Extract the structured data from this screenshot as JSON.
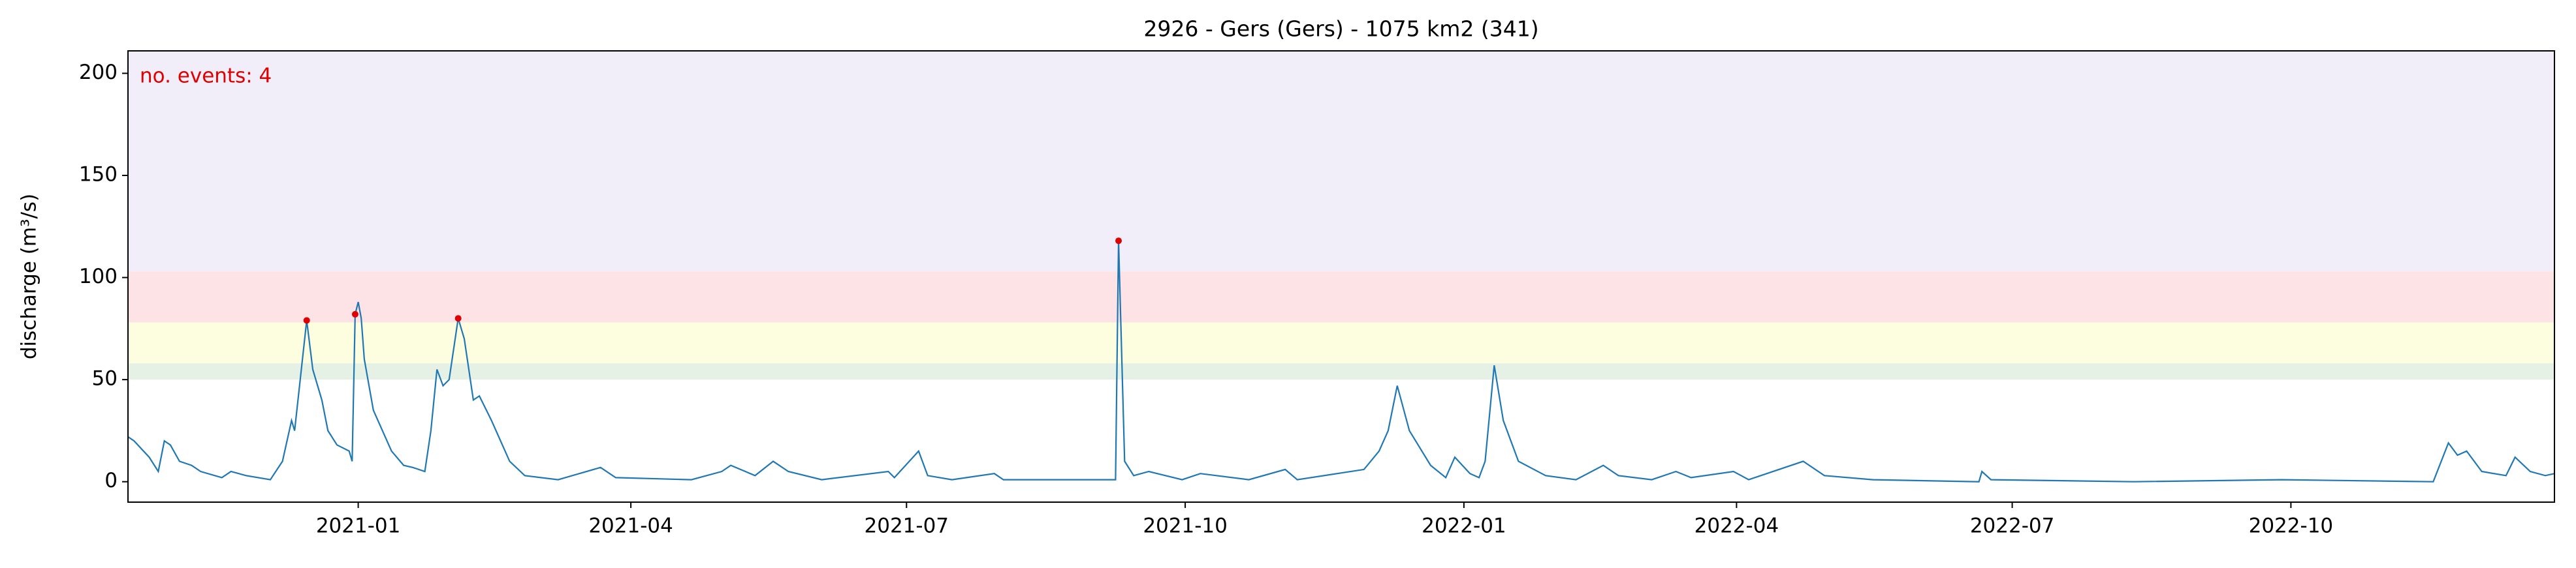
{
  "chart_data": {
    "type": "line",
    "title": "2926 - Gers (Gers) - 1075 km2 (341)",
    "y_label": "discharge (m³/s)",
    "annotation": "no. events: 4",
    "annotation_color": "#e00000",
    "xlim": [
      -76,
      725
    ],
    "xticks": [
      {
        "value": 0,
        "label": "2021-01"
      },
      {
        "value": 90,
        "label": "2021-04"
      },
      {
        "value": 181,
        "label": "2021-07"
      },
      {
        "value": 273,
        "label": "2021-10"
      },
      {
        "value": 365,
        "label": "2022-01"
      },
      {
        "value": 455,
        "label": "2022-04"
      },
      {
        "value": 546,
        "label": "2022-07"
      },
      {
        "value": 638,
        "label": "2022-10"
      }
    ],
    "ylim": [
      -10,
      211
    ],
    "yticks": [
      0,
      50,
      100,
      150,
      200
    ],
    "bands": [
      {
        "from": 50,
        "to": 58,
        "color": "#e4f1e4"
      },
      {
        "from": 58,
        "to": 78,
        "color": "#fdfde0"
      },
      {
        "from": 78,
        "to": 103,
        "color": "#fde3e6"
      },
      {
        "from": 103,
        "to": 211,
        "color": "#f1eef9"
      }
    ],
    "x": [
      -76,
      -74,
      -69,
      -66,
      -64,
      -62,
      -59,
      -55,
      -52,
      -45,
      -42,
      -37,
      -29,
      -25,
      -22,
      -21,
      -17,
      -15,
      -12,
      -10,
      -7,
      -3,
      -2,
      -1,
      0,
      1,
      2,
      5,
      11,
      15,
      18,
      22,
      24,
      26,
      28,
      30,
      33,
      35,
      38,
      40,
      44,
      50,
      55,
      66,
      80,
      85,
      110,
      120,
      123,
      131,
      137,
      142,
      153,
      175,
      177,
      185,
      188,
      196,
      210,
      213,
      250,
      251,
      253,
      256,
      261,
      272,
      278,
      294,
      306,
      310,
      332,
      337,
      340,
      343,
      347,
      354,
      359,
      362,
      367,
      370,
      372,
      375,
      378,
      383,
      392,
      402,
      411,
      416,
      427,
      435,
      440,
      454,
      459,
      477,
      484,
      500,
      535,
      536,
      539,
      586,
      635,
      685,
      690,
      693,
      696,
      701,
      709,
      712,
      717,
      722,
      725
    ],
    "series": [
      {
        "name": "discharge",
        "color": "#1f77b4",
        "values": [
          22,
          20,
          12,
          5,
          20,
          18,
          10,
          8,
          5,
          2,
          5,
          3,
          1,
          10,
          30,
          25,
          79,
          55,
          40,
          25,
          18,
          15,
          10,
          82,
          88,
          80,
          60,
          35,
          15,
          8,
          7,
          5,
          25,
          55,
          47,
          50,
          80,
          70,
          40,
          42,
          30,
          10,
          3,
          1,
          7,
          2,
          1,
          5,
          8,
          3,
          10,
          5,
          1,
          5,
          2,
          15,
          3,
          1,
          4,
          1,
          1,
          118,
          10,
          3,
          5,
          1,
          4,
          1,
          6,
          1,
          6,
          15,
          25,
          47,
          25,
          8,
          2,
          12,
          4,
          2,
          10,
          57,
          30,
          10,
          3,
          1,
          8,
          3,
          1,
          5,
          2,
          5,
          1,
          10,
          3,
          1,
          0,
          5,
          1,
          0,
          1,
          0,
          19,
          13,
          15,
          5,
          3,
          12,
          5,
          3,
          4
        ]
      }
    ],
    "events": {
      "color": "#e00000",
      "x": [
        -17,
        -1,
        33,
        251
      ],
      "values": [
        79,
        82,
        80,
        118
      ]
    }
  }
}
